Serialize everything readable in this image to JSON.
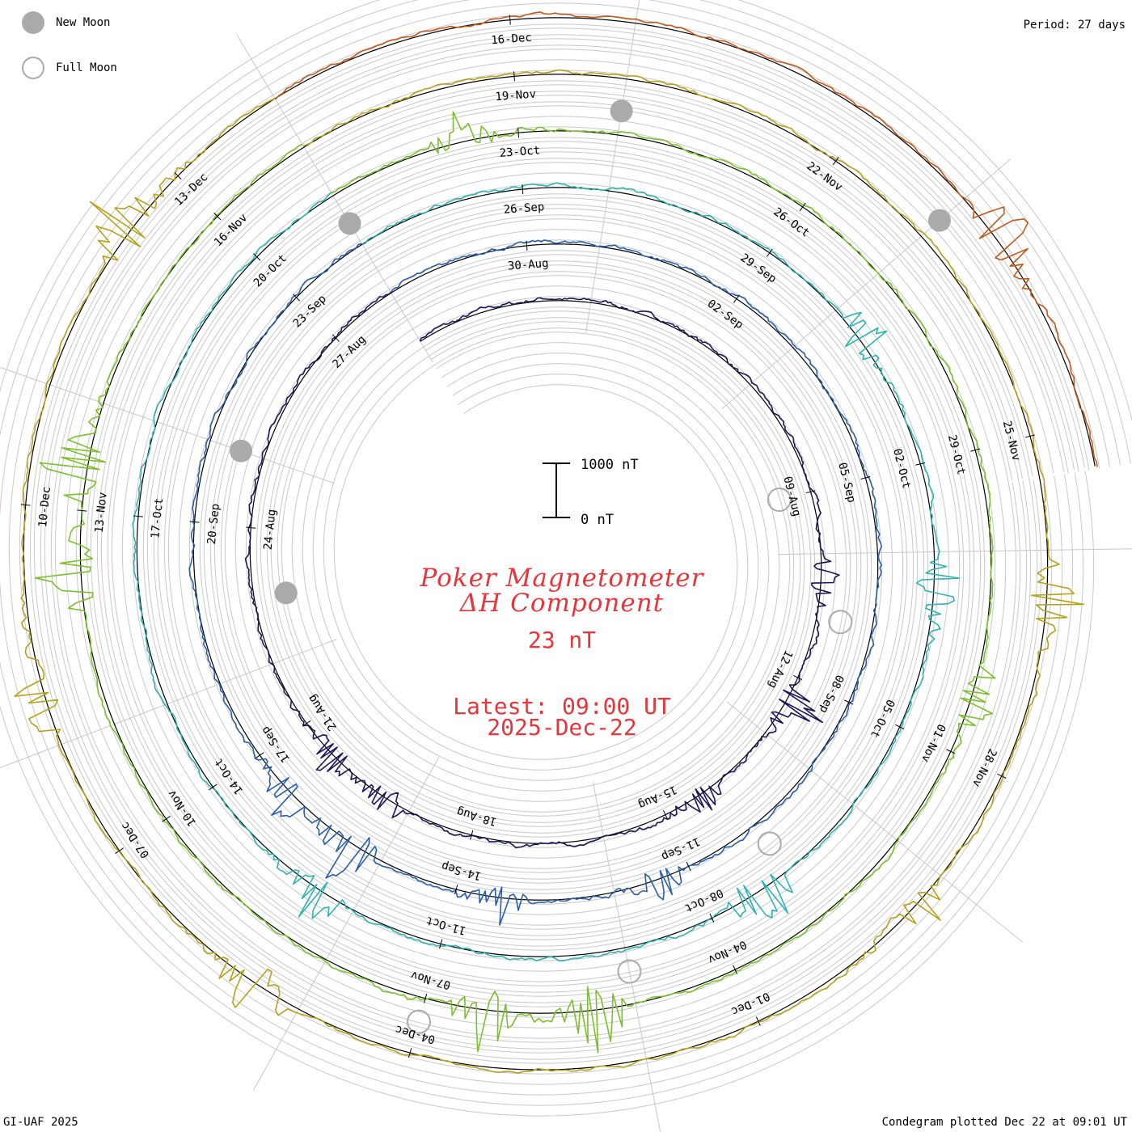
{
  "header": {
    "legend": [
      {
        "kind": "new",
        "label": "New Moon"
      },
      {
        "kind": "full",
        "label": "Full Moon"
      }
    ],
    "period": "Period: 27 days"
  },
  "title": {
    "line1": "Poker Magnetometer",
    "line2": "ΔH Component",
    "value": "23 nT",
    "latest": "Latest: 09:00 UT",
    "date": "2025-Dec-22"
  },
  "scale_bar": {
    "top_label": "1000 nT",
    "bottom_label": "0 nT"
  },
  "footer": {
    "credit": "GI-UAF 2025",
    "plotted": "Condegram plotted Dec 22 at 09:01 UT"
  },
  "chart_data": {
    "type": "condegram-spiral",
    "period_days": 27,
    "units": "nT",
    "start_date": "2025-08-01",
    "end_date": "2025-12-22",
    "colors": {
      "title": "#e8343a",
      "moon": "#aaaaaa",
      "grid": "#c8c8c8",
      "baseline": "#000000",
      "turns": [
        "#1c1659",
        "#2a5ea8",
        "#2fb3b0",
        "#7cbf2e",
        "#b5a21c",
        "#c0581c"
      ]
    },
    "date_labels": [
      "09-Aug",
      "12-Aug",
      "15-Aug",
      "18-Aug",
      "21-Aug",
      "24-Aug",
      "27-Aug",
      "30-Aug",
      "02-Sep",
      "05-Sep",
      "08-Sep",
      "11-Sep",
      "14-Sep",
      "17-Sep",
      "20-Sep",
      "23-Sep",
      "26-Sep",
      "29-Sep",
      "02-Oct",
      "05-Oct",
      "08-Oct",
      "11-Oct",
      "14-Oct",
      "17-Oct",
      "20-Oct",
      "23-Oct",
      "26-Oct",
      "29-Oct",
      "01-Nov",
      "04-Nov",
      "07-Nov",
      "10-Nov",
      "13-Nov",
      "16-Nov",
      "19-Nov",
      "22-Nov",
      "25-Nov",
      "28-Nov",
      "01-Dec",
      "04-Dec",
      "07-Dec",
      "10-Dec",
      "13-Dec",
      "16-Dec"
    ],
    "moon_phases": [
      {
        "date": "2025-08-09",
        "phase": "full"
      },
      {
        "date": "2025-08-23",
        "phase": "new"
      },
      {
        "date": "2025-09-07",
        "phase": "full"
      },
      {
        "date": "2025-09-21",
        "phase": "new"
      },
      {
        "date": "2025-10-07",
        "phase": "full"
      },
      {
        "date": "2025-10-21",
        "phase": "new"
      },
      {
        "date": "2025-11-05",
        "phase": "full"
      },
      {
        "date": "2025-11-20",
        "phase": "new"
      },
      {
        "date": "2025-12-04",
        "phase": "full"
      },
      {
        "date": "2025-12-20",
        "phase": "new"
      }
    ],
    "disturbances": [
      {
        "date": "2025-08-10",
        "peak_nT": 260
      },
      {
        "date": "2025-08-12",
        "peak_nT": 300
      },
      {
        "date": "2025-08-14",
        "peak_nT": 200
      },
      {
        "date": "2025-08-19",
        "peak_nT": 260
      },
      {
        "date": "2025-08-20",
        "peak_nT": 280
      },
      {
        "date": "2025-09-11",
        "peak_nT": 260
      },
      {
        "date": "2025-09-13",
        "peak_nT": 250
      },
      {
        "date": "2025-09-15",
        "peak_nT": 380
      },
      {
        "date": "2025-09-16",
        "peak_nT": 300
      },
      {
        "date": "2025-09-30",
        "peak_nT": 300
      },
      {
        "date": "2025-10-03",
        "peak_nT": 330
      },
      {
        "date": "2025-10-07",
        "peak_nT": 450
      },
      {
        "date": "2025-10-12",
        "peak_nT": 300
      },
      {
        "date": "2025-10-22",
        "peak_nT": 260
      },
      {
        "date": "2025-10-31",
        "peak_nT": 300
      },
      {
        "date": "2025-11-05",
        "peak_nT": 420
      },
      {
        "date": "2025-11-06",
        "peak_nT": 380
      },
      {
        "date": "2025-11-12",
        "peak_nT": 400
      },
      {
        "date": "2025-11-13",
        "peak_nT": 420
      },
      {
        "date": "2025-11-26",
        "peak_nT": 350
      },
      {
        "date": "2025-11-29",
        "peak_nT": 330
      },
      {
        "date": "2025-12-05",
        "peak_nT": 350
      },
      {
        "date": "2025-12-08",
        "peak_nT": 300
      },
      {
        "date": "2025-12-12",
        "peak_nT": 380
      },
      {
        "date": "2025-12-20",
        "peak_nT": 330
      }
    ],
    "scale_range_nT": [
      0,
      1000
    ]
  }
}
